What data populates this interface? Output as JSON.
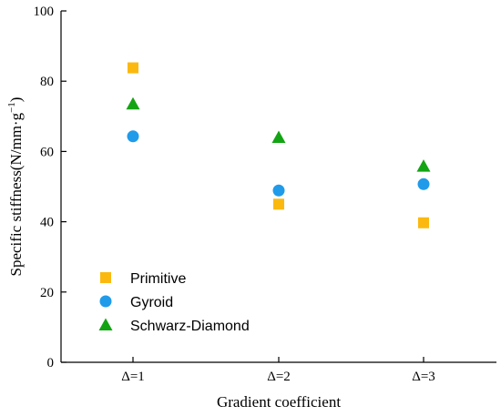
{
  "chart_data": {
    "type": "scatter",
    "categories": [
      "Δ=1",
      "Δ=2",
      "Δ=3"
    ],
    "xlabel": "Gradient coefficient",
    "ylabel": "Specific stiffness(N/mm·g",
    "ylabel_sup": "−1",
    "ylabel_close": ")",
    "ylim": [
      0,
      100
    ],
    "yticks": [
      0,
      20,
      40,
      60,
      80,
      100
    ],
    "grid": false,
    "legend_position": "bottom-left",
    "series": [
      {
        "name": "Primitive",
        "marker": "square",
        "color": "#FBB910",
        "values": [
          83.8,
          45.0,
          39.7
        ]
      },
      {
        "name": "Gyroid",
        "marker": "circle",
        "color": "#1F9BEA",
        "values": [
          64.3,
          48.9,
          50.7
        ]
      },
      {
        "name": "Schwarz-Diamond",
        "marker": "triangle",
        "color": "#13A413",
        "values": [
          73.5,
          64.0,
          55.8
        ]
      }
    ]
  }
}
